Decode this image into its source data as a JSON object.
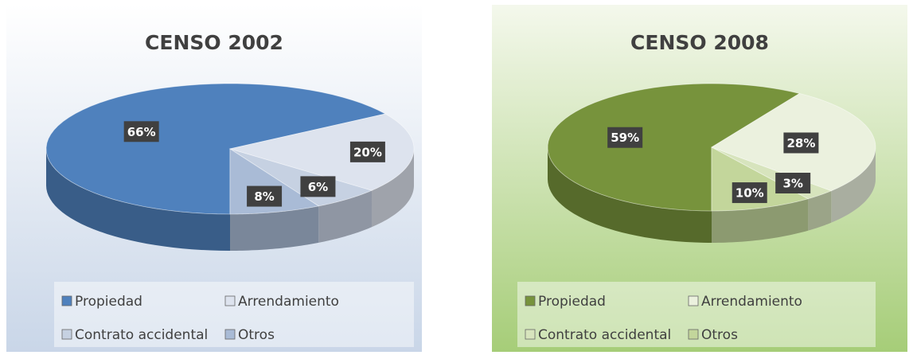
{
  "chart_data": [
    {
      "type": "pie",
      "title": "CENSO 2002",
      "categories": [
        "Propiedad",
        "Arrendamiento",
        "Contrato accidental",
        "Otros"
      ],
      "values": [
        66,
        20,
        6,
        8
      ],
      "value_labels": [
        "66%",
        "20%",
        "6%",
        "8%"
      ],
      "colors": [
        "#4f81bd",
        "#dde3ee",
        "#c6d1e2",
        "#a9bbd6"
      ]
    },
    {
      "type": "pie",
      "title": "CENSO 2008",
      "categories": [
        "Propiedad",
        "Arrendamiento",
        "Contrato accidental",
        "Otros"
      ],
      "values": [
        59,
        28,
        3,
        10
      ],
      "value_labels": [
        "59%",
        "28%",
        "3%",
        "10%"
      ],
      "colors": [
        "#77933c",
        "#ebf1de",
        "#d7e4bd",
        "#c3d69b"
      ]
    }
  ]
}
